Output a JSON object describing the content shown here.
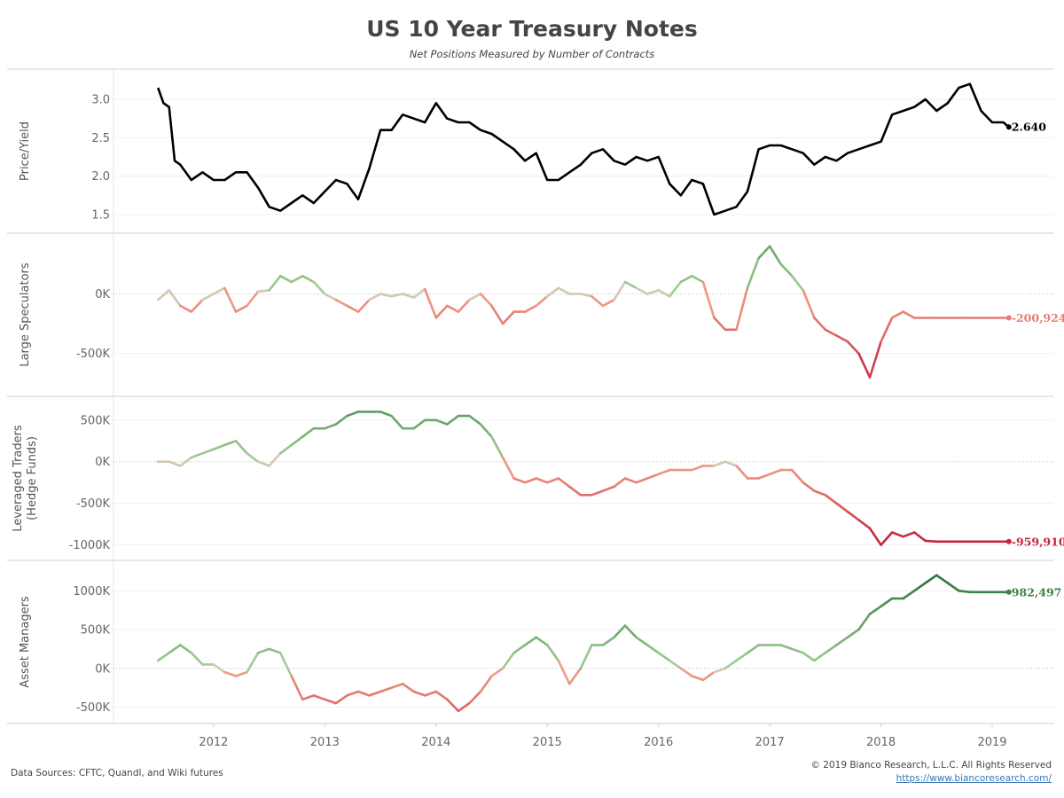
{
  "header": {
    "title": "US 10 Year Treasury Notes",
    "subtitle": "Net Positions Measured by Number of Contracts"
  },
  "footer": {
    "source": "Data Sources: CFTC, Quandl, and Wiki futures",
    "copyright": "© 2019 Bianco Research, L.L.C. All Rights Reserved",
    "link": "https://www.biancoresearch.com/"
  },
  "colors": {
    "price": "#000000",
    "positive_light": "#a8d19a",
    "positive_dark": "#2f7a3c",
    "negative_light": "#f3a08a",
    "negative_dark": "#c0203a",
    "neutral": "#d2c8b2"
  },
  "chart_data": {
    "type": "line",
    "x_ticks": [
      "2012",
      "2013",
      "2014",
      "2015",
      "2016",
      "2017",
      "2018",
      "2019"
    ],
    "x_tick_values": [
      2012,
      2013,
      2014,
      2015,
      2016,
      2017,
      2018,
      2019
    ],
    "xlim": [
      2011.1,
      2019.55
    ],
    "panels": [
      {
        "id": "price",
        "ylabel": [
          "Price/Yield"
        ],
        "ylim": [
          1.35,
          3.3
        ],
        "ticks": [
          3.0,
          2.5,
          2.0,
          1.5
        ],
        "tick_labels": [
          "3.0",
          "2.5",
          "2.0",
          "1.5"
        ],
        "zero_line": false,
        "color_mode": "solid",
        "end_label": "2.640",
        "x": [
          2011.5,
          2011.55,
          2011.6,
          2011.65,
          2011.7,
          2011.8,
          2011.9,
          2012.0,
          2012.1,
          2012.2,
          2012.3,
          2012.4,
          2012.5,
          2012.6,
          2012.7,
          2012.8,
          2012.9,
          2013.0,
          2013.1,
          2013.2,
          2013.3,
          2013.4,
          2013.5,
          2013.6,
          2013.7,
          2013.8,
          2013.9,
          2014.0,
          2014.1,
          2014.2,
          2014.3,
          2014.4,
          2014.5,
          2014.6,
          2014.7,
          2014.8,
          2014.9,
          2015.0,
          2015.1,
          2015.2,
          2015.3,
          2015.4,
          2015.5,
          2015.6,
          2015.7,
          2015.8,
          2015.9,
          2016.0,
          2016.1,
          2016.2,
          2016.3,
          2016.4,
          2016.5,
          2016.6,
          2016.7,
          2016.8,
          2016.9,
          2017.0,
          2017.1,
          2017.2,
          2017.3,
          2017.4,
          2017.5,
          2017.6,
          2017.7,
          2017.8,
          2017.9,
          2018.0,
          2018.1,
          2018.2,
          2018.3,
          2018.4,
          2018.5,
          2018.6,
          2018.7,
          2018.8,
          2018.9,
          2019.0,
          2019.1,
          2019.15
        ],
        "values": [
          3.15,
          2.95,
          2.9,
          2.2,
          2.15,
          1.95,
          2.05,
          1.95,
          1.95,
          2.05,
          2.05,
          1.85,
          1.6,
          1.55,
          1.65,
          1.75,
          1.65,
          1.8,
          1.95,
          1.9,
          1.7,
          2.1,
          2.6,
          2.6,
          2.8,
          2.75,
          2.7,
          2.95,
          2.75,
          2.7,
          2.7,
          2.6,
          2.55,
          2.45,
          2.35,
          2.2,
          2.3,
          1.95,
          1.95,
          2.05,
          2.15,
          2.3,
          2.35,
          2.2,
          2.15,
          2.25,
          2.2,
          2.25,
          1.9,
          1.75,
          1.95,
          1.9,
          1.5,
          1.55,
          1.6,
          1.8,
          2.35,
          2.4,
          2.4,
          2.35,
          2.3,
          2.15,
          2.25,
          2.2,
          2.3,
          2.35,
          2.4,
          2.45,
          2.8,
          2.85,
          2.9,
          3.0,
          2.85,
          2.95,
          3.15,
          3.2,
          2.85,
          2.7,
          2.7,
          2.64
        ]
      },
      {
        "id": "large-speculators",
        "ylabel": [
          "Large Speculators"
        ],
        "ylim": [
          -800000,
          450000
        ],
        "ticks": [
          0,
          -500000
        ],
        "tick_labels": [
          "0K",
          "-500K"
        ],
        "zero_line": true,
        "color_mode": "signed",
        "color_scale": 750000,
        "end_label": "-200,924",
        "x": [
          2011.5,
          2011.6,
          2011.7,
          2011.8,
          2011.9,
          2012.0,
          2012.1,
          2012.2,
          2012.3,
          2012.4,
          2012.5,
          2012.6,
          2012.7,
          2012.8,
          2012.9,
          2013.0,
          2013.1,
          2013.2,
          2013.3,
          2013.4,
          2013.5,
          2013.6,
          2013.7,
          2013.8,
          2013.9,
          2014.0,
          2014.1,
          2014.2,
          2014.3,
          2014.4,
          2014.5,
          2014.6,
          2014.7,
          2014.8,
          2014.9,
          2015.0,
          2015.1,
          2015.2,
          2015.3,
          2015.4,
          2015.5,
          2015.6,
          2015.7,
          2015.8,
          2015.9,
          2016.0,
          2016.1,
          2016.2,
          2016.3,
          2016.4,
          2016.5,
          2016.6,
          2016.7,
          2016.8,
          2016.9,
          2017.0,
          2017.1,
          2017.2,
          2017.3,
          2017.4,
          2017.5,
          2017.6,
          2017.7,
          2017.8,
          2017.9,
          2018.0,
          2018.1,
          2018.2,
          2018.3,
          2018.4,
          2018.5,
          2018.6,
          2018.7,
          2018.8,
          2018.9,
          2019.0,
          2019.1,
          2019.15
        ],
        "values": [
          -50000,
          30000,
          -100000,
          -150000,
          -50000,
          0,
          50000,
          -150000,
          -100000,
          20000,
          30000,
          150000,
          100000,
          150000,
          100000,
          0,
          -50000,
          -100000,
          -150000,
          -50000,
          0,
          -20000,
          0,
          -30000,
          40000,
          -200000,
          -100000,
          -150000,
          -50000,
          0,
          -100000,
          -250000,
          -150000,
          -150000,
          -100000,
          -20000,
          50000,
          0,
          0,
          -20000,
          -100000,
          -50000,
          100000,
          50000,
          0,
          30000,
          -20000,
          100000,
          150000,
          100000,
          -200000,
          -300000,
          -300000,
          50000,
          300000,
          400000,
          250000,
          150000,
          30000,
          -200000,
          -300000,
          -350000,
          -400000,
          -500000,
          -700000,
          -400000,
          -200000,
          -150000,
          -200924,
          -200924,
          -200924,
          -200924,
          -200924,
          -200924,
          -200924,
          -200924,
          -200924,
          -200924
        ]
      },
      {
        "id": "leveraged-traders",
        "ylabel": [
          "Leveraged Traders",
          "(Hedge Funds)"
        ],
        "ylim": [
          -1100000,
          700000
        ],
        "ticks": [
          500000,
          0,
          -500000,
          -1000000
        ],
        "tick_labels": [
          "500K",
          "0K",
          "-500K",
          "-1000K"
        ],
        "zero_line": true,
        "color_mode": "signed",
        "color_scale": 1000000,
        "end_label": "-959,910",
        "x": [
          2011.5,
          2011.6,
          2011.7,
          2011.8,
          2011.9,
          2012.0,
          2012.1,
          2012.2,
          2012.3,
          2012.4,
          2012.5,
          2012.6,
          2012.7,
          2012.8,
          2012.9,
          2013.0,
          2013.1,
          2013.2,
          2013.3,
          2013.4,
          2013.5,
          2013.6,
          2013.7,
          2013.8,
          2013.9,
          2014.0,
          2014.1,
          2014.2,
          2014.3,
          2014.4,
          2014.5,
          2014.6,
          2014.7,
          2014.8,
          2014.9,
          2015.0,
          2015.1,
          2015.2,
          2015.3,
          2015.4,
          2015.5,
          2015.6,
          2015.7,
          2015.8,
          2015.9,
          2016.0,
          2016.1,
          2016.2,
          2016.3,
          2016.4,
          2016.5,
          2016.6,
          2016.7,
          2016.8,
          2016.9,
          2017.0,
          2017.1,
          2017.2,
          2017.3,
          2017.4,
          2017.5,
          2017.6,
          2017.7,
          2017.8,
          2017.9,
          2018.0,
          2018.1,
          2018.2,
          2018.3,
          2018.4,
          2018.5,
          2018.6,
          2018.7,
          2018.8,
          2018.9,
          2019.0,
          2019.1,
          2019.15
        ],
        "values": [
          0,
          0,
          -50000,
          50000,
          100000,
          150000,
          200000,
          250000,
          100000,
          0,
          -50000,
          100000,
          200000,
          300000,
          400000,
          400000,
          450000,
          550000,
          600000,
          600000,
          600000,
          550000,
          400000,
          400000,
          500000,
          500000,
          450000,
          550000,
          550000,
          450000,
          300000,
          50000,
          -200000,
          -250000,
          -200000,
          -250000,
          -200000,
          -300000,
          -400000,
          -400000,
          -350000,
          -300000,
          -200000,
          -250000,
          -200000,
          -150000,
          -100000,
          -100000,
          -100000,
          -50000,
          -50000,
          0,
          -50000,
          -200000,
          -200000,
          -150000,
          -100000,
          -100000,
          -250000,
          -350000,
          -400000,
          -500000,
          -600000,
          -700000,
          -800000,
          -1000000,
          -850000,
          -900000,
          -850000,
          -950000,
          -959910,
          -959910,
          -959910,
          -959910,
          -959910,
          -959910,
          -959910,
          -959910
        ]
      },
      {
        "id": "asset-managers",
        "ylabel": [
          "Asset Managers"
        ],
        "ylim": [
          -620000,
          1300000
        ],
        "ticks": [
          1000000,
          500000,
          0,
          -500000
        ],
        "tick_labels": [
          "1000K",
          "500K",
          "0K",
          "-500K"
        ],
        "zero_line": true,
        "color_mode": "signed",
        "color_scale": 1100000,
        "end_label": "982,497",
        "x": [
          2011.5,
          2011.6,
          2011.7,
          2011.8,
          2011.9,
          2012.0,
          2012.1,
          2012.2,
          2012.3,
          2012.4,
          2012.5,
          2012.6,
          2012.7,
          2012.8,
          2012.9,
          2013.0,
          2013.1,
          2013.2,
          2013.3,
          2013.4,
          2013.5,
          2013.6,
          2013.7,
          2013.8,
          2013.9,
          2014.0,
          2014.1,
          2014.2,
          2014.3,
          2014.4,
          2014.5,
          2014.6,
          2014.7,
          2014.8,
          2014.9,
          2015.0,
          2015.1,
          2015.2,
          2015.3,
          2015.4,
          2015.5,
          2015.6,
          2015.7,
          2015.8,
          2015.9,
          2016.0,
          2016.1,
          2016.2,
          2016.3,
          2016.4,
          2016.5,
          2016.6,
          2016.7,
          2016.8,
          2016.9,
          2017.0,
          2017.1,
          2017.2,
          2017.3,
          2017.4,
          2017.5,
          2017.6,
          2017.7,
          2017.8,
          2017.9,
          2018.0,
          2018.1,
          2018.2,
          2018.3,
          2018.4,
          2018.5,
          2018.6,
          2018.7,
          2018.8,
          2018.9,
          2019.0,
          2019.1,
          2019.15
        ],
        "values": [
          100000,
          200000,
          300000,
          200000,
          50000,
          50000,
          -50000,
          -100000,
          -50000,
          200000,
          250000,
          200000,
          -100000,
          -400000,
          -350000,
          -400000,
          -450000,
          -350000,
          -300000,
          -350000,
          -300000,
          -250000,
          -200000,
          -300000,
          -350000,
          -300000,
          -400000,
          -550000,
          -450000,
          -300000,
          -100000,
          0,
          200000,
          300000,
          400000,
          300000,
          100000,
          -200000,
          0,
          300000,
          300000,
          400000,
          550000,
          400000,
          300000,
          200000,
          100000,
          0,
          -100000,
          -150000,
          -50000,
          0,
          100000,
          200000,
          300000,
          300000,
          300000,
          250000,
          200000,
          100000,
          200000,
          300000,
          400000,
          500000,
          700000,
          800000,
          900000,
          900000,
          1000000,
          1100000,
          1200000,
          1100000,
          1000000,
          982497,
          982497,
          982497,
          982497,
          982497
        ]
      }
    ]
  }
}
